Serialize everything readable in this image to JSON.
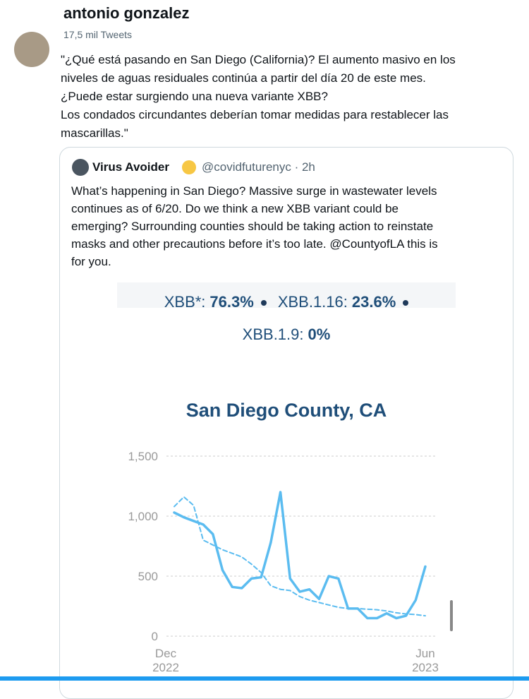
{
  "header": {
    "name": "antonio gonzalez",
    "tweets": "17,5 mil Tweets"
  },
  "tweet": {
    "lines": [
      "\"¿Qué está pasando en San Diego (California)? El aumento masivo en los",
      "niveles de aguas residuales continúa a partir del día 20 de este mes.",
      "¿Puede estar surgiendo una nueva variante XBB?",
      "Los condados circundantes deberían tomar medidas para restablecer las",
      "mascarillas.\""
    ]
  },
  "quote": {
    "author": "Virus Avoider",
    "meta": "@covidfuturenyc · 2h",
    "lines": [
      "What’s happening in San Diego? Massive surge in wastewater levels",
      "continues as of 6/20. Do we think a new XBB variant could be",
      "emerging? Surrounding counties should be taking action to reinstate",
      "masks and other precautions before it’s too late. @CountyofLA this is",
      "for you."
    ]
  },
  "chart_data": {
    "type": "line",
    "title": "San Diego County, CA",
    "legend_items": [
      {
        "label": "XBB*:",
        "value": "76.3%"
      },
      {
        "label": "XBB.1.16:",
        "value": "23.6%"
      },
      {
        "label": "XBB.1.9:",
        "value": "0%"
      }
    ],
    "categories": [
      "Dec\n2022",
      null,
      null,
      null,
      null,
      null,
      null,
      null,
      null,
      null,
      null,
      null,
      null,
      null,
      null,
      null,
      null,
      null,
      null,
      null,
      null,
      null,
      null,
      null,
      null,
      null,
      "Jun\n2023"
    ],
    "series": [
      {
        "color": "#5bbcf0",
        "style": "solid",
        "values": [
          1030,
          990,
          960,
          930,
          850,
          550,
          410,
          400,
          480,
          490,
          780,
          1200,
          480,
          370,
          390,
          310,
          500,
          480,
          230,
          230,
          150,
          150,
          190,
          150,
          170,
          300,
          580
        ]
      },
      {
        "color": "#5bbcf0",
        "style": "dashed",
        "values": [
          1080,
          1160,
          1090,
          800,
          760,
          720,
          690,
          660,
          600,
          530,
          420,
          390,
          380,
          330,
          300,
          280,
          260,
          240,
          230,
          230,
          225,
          220,
          210,
          195,
          185,
          180,
          170
        ]
      }
    ],
    "ylim": [
      0,
      1500
    ],
    "yticks": [
      0,
      500,
      {
        "value": 1000,
        "label": "1,000"
      },
      {
        "value": 1500,
        "label": "1,500"
      }
    ],
    "grid": true
  }
}
